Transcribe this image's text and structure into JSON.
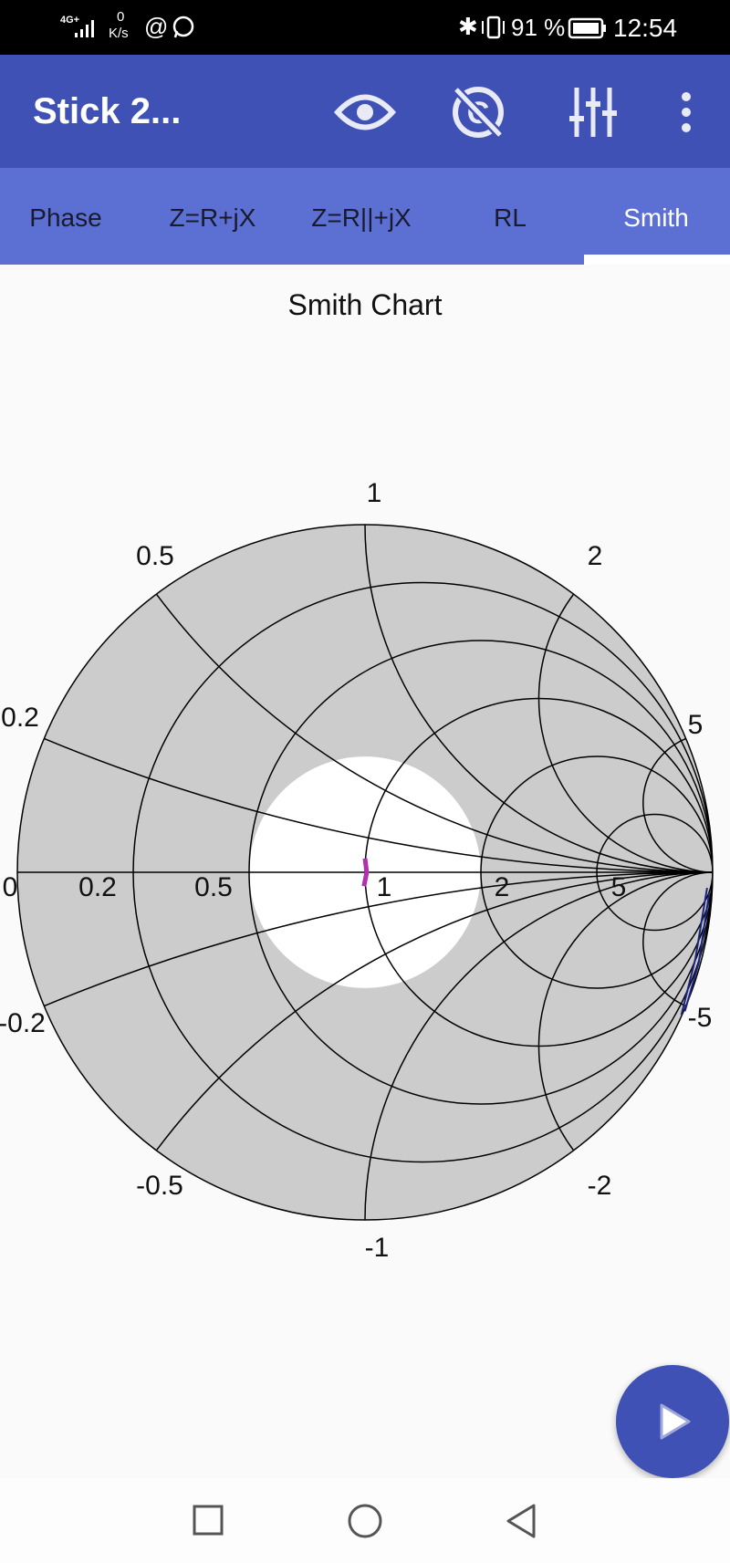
{
  "status_bar": {
    "network": "4G+",
    "speed_value": "0",
    "speed_unit": "K/s",
    "battery": "91 %",
    "time": "12:54",
    "icons": [
      "signal-icon",
      "at-icon",
      "whatsapp-icon",
      "bluetooth-icon",
      "vibrate-icon",
      "battery-icon"
    ]
  },
  "app_bar": {
    "title": "Stick 2...",
    "actions": [
      "eye-icon",
      "no-c-icon",
      "sliders-icon",
      "more-vert-icon"
    ]
  },
  "tabs": [
    {
      "label": "Phase",
      "selected": false
    },
    {
      "label": "Z=R+jX",
      "selected": false
    },
    {
      "label": "Z=R||+jX",
      "selected": false
    },
    {
      "label": "RL",
      "selected": false
    },
    {
      "label": "Smith",
      "selected": true
    }
  ],
  "colors": {
    "primary": "#3f51b5",
    "tab_bar": "#5c70d4",
    "chart_fill": "#cccccc",
    "trace1": "#b030b0",
    "trace2": "#1a237e"
  },
  "chart_data": {
    "type": "smith",
    "title": "Smith Chart",
    "resistance_circles": [
      0.2,
      0.5,
      1,
      2,
      5
    ],
    "reactance_arcs": [
      0.2,
      0.5,
      1,
      2,
      5,
      -0.2,
      -0.5,
      -1,
      -2,
      -5
    ],
    "resistance_labels": [
      "0",
      "0.2",
      "0.5",
      "1",
      "2",
      "5"
    ],
    "reactance_labels": {
      "p02": "0.2",
      "p05": "0.5",
      "p1": "1",
      "p2": "2",
      "p5": "5",
      "m02": "-0.2",
      "m05": "-0.5",
      "m1": "-1",
      "m2": "-2",
      "m5": "-5"
    },
    "white_region_gamma_radius": 0.333,
    "traces": [
      {
        "color": "#b030b0",
        "gamma": [
          [
            0.0,
            0.04
          ],
          [
            0.005,
            0.0
          ],
          [
            -0.003,
            -0.04
          ]
        ]
      },
      {
        "color": "#1a237e",
        "gamma": [
          [
            0.984,
            -0.045
          ],
          [
            0.95,
            -0.25
          ],
          [
            0.91,
            -0.41
          ]
        ]
      },
      {
        "color": "#1a237e",
        "gamma": [
          [
            0.99,
            -0.06
          ],
          [
            0.96,
            -0.26
          ],
          [
            0.92,
            -0.4
          ]
        ]
      }
    ]
  },
  "fab": {
    "icon": "play-icon"
  },
  "nav_bar": {
    "icons": [
      "recents-square-icon",
      "home-circle-icon",
      "back-triangle-icon"
    ]
  }
}
